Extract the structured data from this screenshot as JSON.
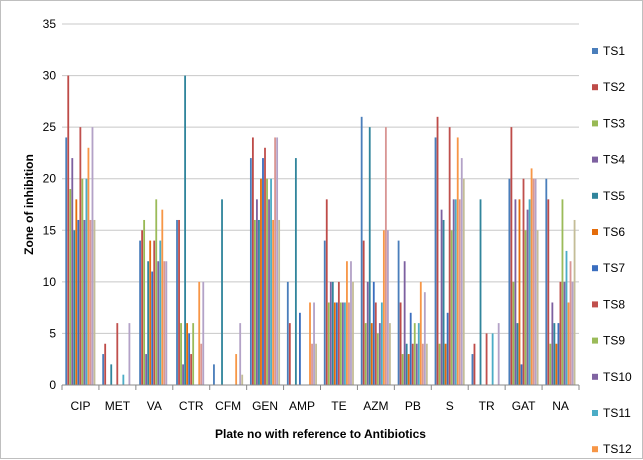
{
  "chart_data": {
    "type": "bar",
    "title": "",
    "xlabel": "Plate no with reference to Antibiotics",
    "ylabel": "Zone of inhibition",
    "ylim": [
      0,
      35
    ],
    "yticks": [
      0,
      5,
      10,
      15,
      20,
      25,
      30,
      35
    ],
    "grid": true,
    "legend_position": "right",
    "categories": [
      "CIP",
      "MET",
      "VA",
      "CTR",
      "CFM",
      "GEN",
      "AMP",
      "TE",
      "AZM",
      "PB",
      "S",
      "TR",
      "GAT",
      "NA"
    ],
    "series": [
      {
        "name": "TS1",
        "color": "#4a7ebb",
        "values": [
          24,
          3,
          14,
          16,
          2,
          22,
          10,
          14,
          26,
          14,
          24,
          3,
          20,
          20
        ]
      },
      {
        "name": "TS2",
        "color": "#be4b48",
        "values": [
          30,
          4,
          15,
          16,
          0,
          24,
          6,
          18,
          14,
          8,
          26,
          4,
          25,
          18
        ]
      },
      {
        "name": "TS3",
        "color": "#98b954",
        "values": [
          19,
          0,
          16,
          6,
          0,
          16,
          0,
          8,
          6,
          3,
          4,
          0,
          10,
          4
        ]
      },
      {
        "name": "TS4",
        "color": "#7d60a0",
        "values": [
          22,
          0,
          3,
          2,
          0,
          18,
          0,
          10,
          10,
          12,
          17,
          0,
          18,
          8
        ]
      },
      {
        "name": "TS5",
        "color": "#31859c",
        "values": [
          15,
          2,
          12,
          30,
          18,
          16,
          22,
          10,
          25,
          4,
          16,
          18,
          6,
          6
        ]
      },
      {
        "name": "TS6",
        "color": "#e46c0a",
        "values": [
          18,
          0,
          14,
          6,
          0,
          20,
          0,
          8,
          6,
          3,
          4,
          0,
          18,
          4
        ]
      },
      {
        "name": "TS7",
        "color": "#3a6ebf",
        "values": [
          16,
          0,
          11,
          5,
          0,
          22,
          7,
          8,
          10,
          7,
          7,
          0,
          2,
          6
        ]
      },
      {
        "name": "TS8",
        "color": "#c0504d",
        "values": [
          25,
          6,
          14,
          3,
          0,
          23,
          0,
          10,
          8,
          4,
          25,
          5,
          20,
          10
        ]
      },
      {
        "name": "TS9",
        "color": "#9bbb59",
        "values": [
          20,
          0,
          18,
          6,
          0,
          20,
          0,
          8,
          5,
          6,
          15,
          0,
          15,
          18
        ]
      },
      {
        "name": "TS10",
        "color": "#8064a2",
        "values": [
          16,
          0,
          12,
          0,
          0,
          18,
          0,
          8,
          6,
          4,
          18,
          0,
          17,
          10
        ]
      },
      {
        "name": "TS11",
        "color": "#4bacc6",
        "values": [
          20,
          1,
          14,
          0,
          0,
          20,
          0,
          8,
          8,
          6,
          18,
          5,
          18,
          13
        ]
      },
      {
        "name": "TS12",
        "color": "#f79646",
        "values": [
          23,
          0,
          17,
          10,
          3,
          16,
          8,
          12,
          15,
          10,
          24,
          0,
          21,
          8
        ]
      },
      {
        "name": "",
        "color": "#d99694",
        "values": [
          16,
          0,
          12,
          4,
          0,
          24,
          4,
          8,
          25,
          4,
          18,
          0,
          20,
          12
        ]
      },
      {
        "name": "",
        "color": "#b3a2c7",
        "values": [
          25,
          6,
          12,
          10,
          6,
          24,
          8,
          12,
          15,
          9,
          22,
          6,
          20,
          10
        ]
      },
      {
        "name": "",
        "color": "#c4bd97",
        "values": [
          16,
          0,
          0,
          0,
          1,
          16,
          4,
          10,
          6,
          4,
          20,
          0,
          15,
          16
        ]
      }
    ]
  }
}
